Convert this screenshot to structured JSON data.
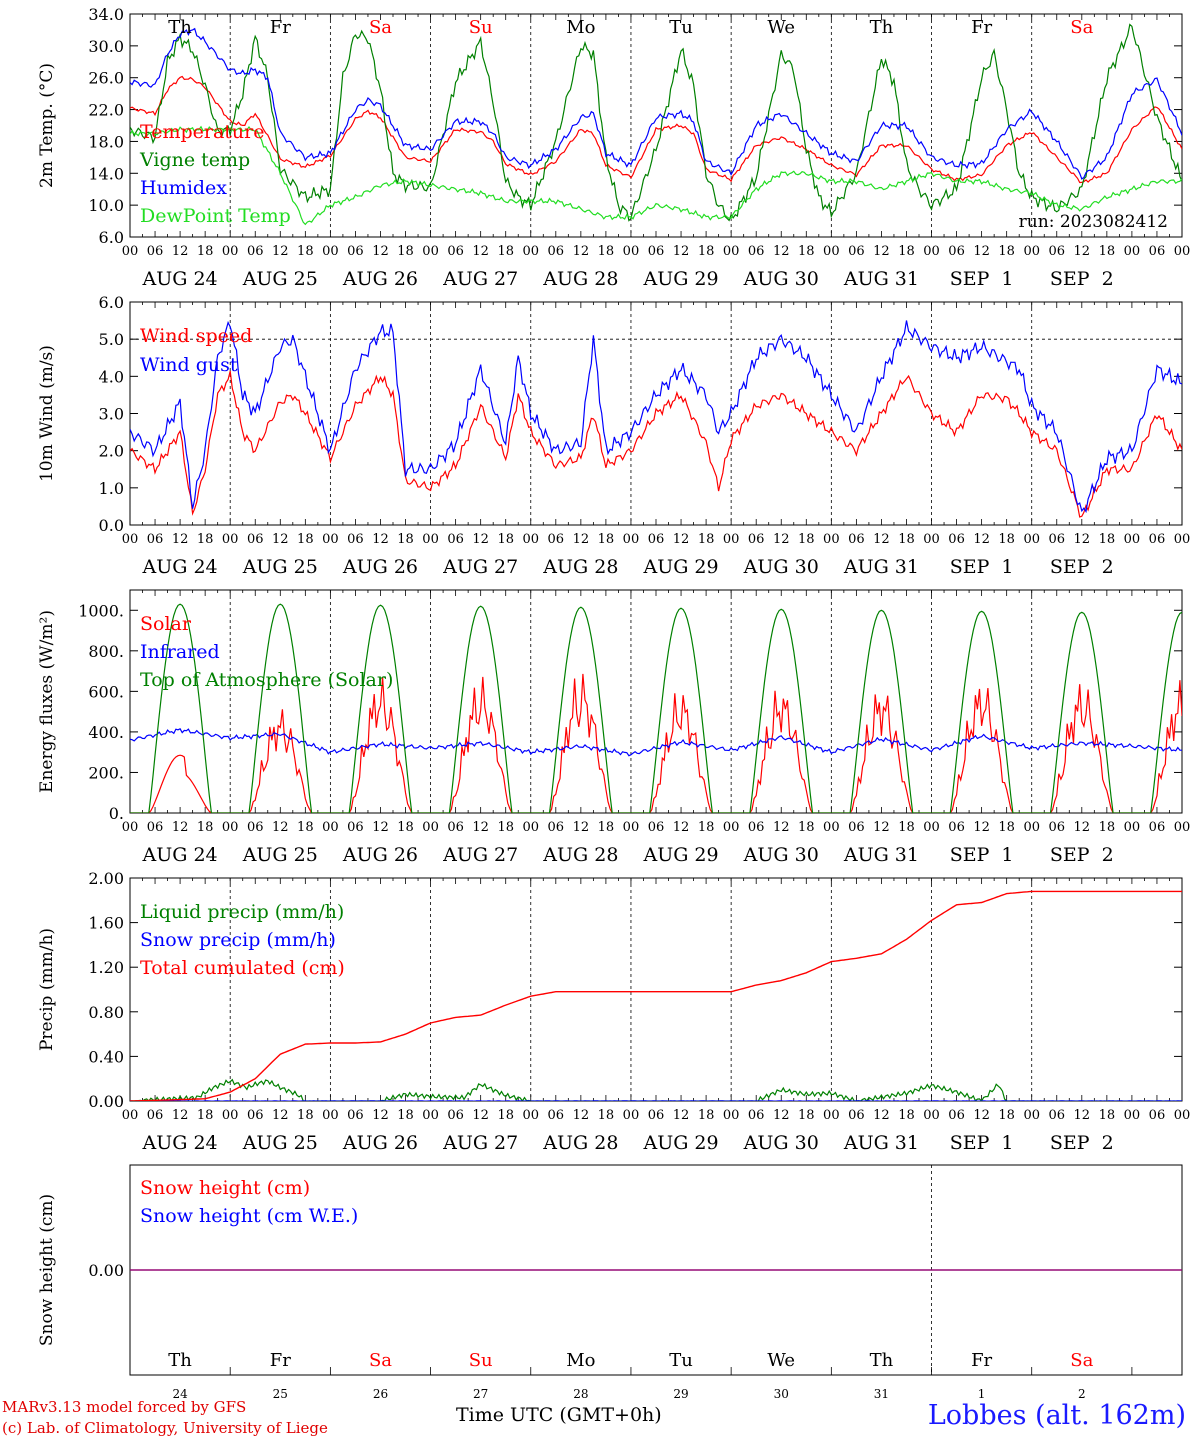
{
  "colors": {
    "red": "#ff0000",
    "green": "#008000",
    "blue": "#0000ff",
    "light_green": "#22dd22",
    "purple": "#800080",
    "weekend": "#ff0000",
    "weekday": "#000000"
  },
  "time_axis": {
    "hour_labels": [
      "00",
      "06",
      "12",
      "18"
    ],
    "final_hour_label": "00",
    "dates": [
      "AUG 24",
      "AUG 25",
      "AUG 26",
      "AUG 27",
      "AUG 28",
      "AUG 29",
      "AUG 30",
      "AUG 31",
      "SEP  1",
      "SEP  2"
    ],
    "day_names": [
      "Th",
      "Fr",
      "Sa",
      "Su",
      "Mo",
      "Tu",
      "We",
      "Th",
      "Fr",
      "Sa"
    ],
    "weekend_index": [
      2,
      3,
      9
    ],
    "day_numbers": [
      "24",
      "25",
      "26",
      "27",
      "28",
      "29",
      "30",
      "31",
      "1",
      "2"
    ]
  },
  "footer": {
    "model_line": "MARv3.13 model forced by GFS",
    "lab_line": "(c) Lab. of Climatology, University of Liege",
    "xlabel": "Time UTC (GMT+0h)",
    "station": "Lobbes (alt. 162m)"
  },
  "chart_data": [
    {
      "type": "line",
      "ylabel": "2m Temp. (°C)",
      "ylim": [
        6.0,
        34.0
      ],
      "ytick_labels": [
        "6.0",
        "10.0",
        "14.0",
        "18.0",
        "22.0",
        "26.0",
        "30.0",
        "34.0"
      ],
      "annotation": "run: 2023082412",
      "x_unit": "hours since Aug 24 00 UTC",
      "series": [
        {
          "name": "Temperature",
          "color": "red",
          "x": [
            0,
            6,
            9,
            12,
            15,
            18,
            24,
            27,
            30,
            36,
            42,
            48,
            54,
            57,
            60,
            66,
            72,
            78,
            84,
            87,
            90,
            96,
            102,
            108,
            111,
            114,
            120,
            126,
            132,
            135,
            138,
            144,
            150,
            156,
            162,
            168,
            174,
            180,
            186,
            192,
            198,
            204,
            210,
            216,
            222,
            228,
            234,
            240,
            246,
            252
          ],
          "y": [
            22.2,
            21.5,
            24.5,
            26,
            25.8,
            24.8,
            20.5,
            20,
            21.5,
            15.8,
            14.8,
            16.2,
            20.8,
            21.8,
            21,
            16,
            15.5,
            19.5,
            19.2,
            18,
            15.2,
            13.8,
            15.5,
            19.5,
            19,
            15,
            13.5,
            19.5,
            20,
            19,
            14.5,
            13.2,
            17.5,
            18.5,
            17,
            15,
            13.8,
            17.5,
            17.5,
            14.5,
            13.2,
            13.8,
            17.5,
            19.2,
            16,
            12.8,
            14,
            19.5,
            22.5,
            17
          ]
        },
        {
          "name": "Vigne temp",
          "color": "green",
          "x": [
            0,
            6,
            9,
            12,
            15,
            18,
            21,
            24,
            27,
            30,
            33,
            36,
            42,
            48,
            51,
            54,
            57,
            60,
            63,
            66,
            72,
            78,
            84,
            87,
            90,
            93,
            96,
            102,
            108,
            111,
            114,
            117,
            120,
            126,
            132,
            135,
            138,
            141,
            144,
            150,
            156,
            159,
            162,
            165,
            168,
            174,
            180,
            183,
            186,
            189,
            192,
            198,
            204,
            207,
            210,
            213,
            216,
            222,
            228,
            234,
            240,
            246,
            252
          ],
          "y": [
            19.5,
            18.5,
            28,
            31,
            29.5,
            25,
            19.2,
            19.5,
            24,
            31,
            26,
            14.5,
            11,
            12,
            26,
            31.5,
            31,
            24.5,
            14,
            12.5,
            12.2,
            25.5,
            30.5,
            23,
            13,
            11,
            10,
            18,
            30,
            29,
            16,
            10,
            8.5,
            17,
            29.5,
            25,
            14,
            10,
            8,
            13.5,
            29,
            27,
            17,
            11,
            9,
            14,
            28.5,
            25.5,
            15,
            12,
            10,
            12,
            26,
            29,
            22,
            14,
            11,
            9.5,
            12,
            26,
            32.5,
            21,
            13
          ]
        },
        {
          "name": "Humidex",
          "color": "blue",
          "x": [
            0,
            6,
            9,
            12,
            15,
            18,
            24,
            27,
            30,
            33,
            36,
            42,
            48,
            54,
            57,
            60,
            66,
            72,
            78,
            84,
            87,
            90,
            96,
            102,
            108,
            111,
            114,
            120,
            126,
            132,
            135,
            138,
            144,
            150,
            156,
            162,
            168,
            174,
            180,
            186,
            192,
            198,
            204,
            210,
            216,
            222,
            228,
            234,
            240,
            246,
            252
          ],
          "y": [
            25.5,
            25,
            29,
            31.5,
            32,
            30.5,
            27,
            26.5,
            27,
            26,
            19,
            16,
            16.5,
            22,
            23.2,
            22.5,
            17.5,
            17,
            20.5,
            20.5,
            19,
            16,
            15,
            17,
            21,
            21.5,
            16.5,
            15,
            21,
            21.5,
            20.5,
            15.5,
            14,
            20,
            21.5,
            19,
            16.5,
            15.5,
            20,
            20,
            16,
            15,
            15.2,
            19.5,
            21.8,
            18,
            13.5,
            16,
            24,
            25.8,
            19
          ]
        },
        {
          "name": "DewPoint Temp",
          "color": "light_green",
          "x": [
            0,
            6,
            12,
            18,
            24,
            30,
            36,
            42,
            48,
            54,
            60,
            66,
            72,
            78,
            84,
            90,
            96,
            102,
            108,
            114,
            120,
            126,
            132,
            138,
            144,
            150,
            156,
            162,
            168,
            174,
            180,
            186,
            192,
            198,
            204,
            210,
            216,
            222,
            228,
            234,
            240,
            246,
            252
          ],
          "y": [
            19,
            19,
            19.5,
            19.5,
            19.5,
            19.5,
            14,
            7.5,
            10,
            11,
            12.5,
            13,
            12.5,
            12,
            11.5,
            10.5,
            10.5,
            10.5,
            9.5,
            8.5,
            8.5,
            10,
            9.5,
            8.5,
            8.5,
            12,
            14,
            14,
            13,
            13,
            12,
            13,
            14,
            13,
            13,
            12,
            11.5,
            10,
            9.5,
            11,
            12,
            13,
            13
          ]
        }
      ]
    },
    {
      "type": "line",
      "ylabel": "10m Wind (m/s)",
      "ylim": [
        0.0,
        6.0
      ],
      "ytick_labels": [
        "0.0",
        "1.0",
        "2.0",
        "3.0",
        "4.0",
        "5.0",
        "6.0"
      ],
      "reference_line": 5.0,
      "series": [
        {
          "name": "Wind speed",
          "color": "red",
          "x": [
            0,
            6,
            12,
            15,
            18,
            21,
            24,
            27,
            30,
            36,
            39,
            42,
            48,
            54,
            60,
            63,
            66,
            72,
            78,
            84,
            90,
            93,
            96,
            102,
            108,
            111,
            114,
            120,
            126,
            132,
            138,
            141,
            144,
            150,
            156,
            162,
            168,
            174,
            180,
            186,
            192,
            198,
            204,
            210,
            213,
            216,
            222,
            228,
            234,
            240,
            246,
            252
          ],
          "y": [
            2,
            1.5,
            2.5,
            0.3,
            1.5,
            3.5,
            4,
            2.5,
            2,
            3.3,
            3.5,
            3,
            1.8,
            3.2,
            4,
            3.5,
            1.2,
            1.0,
            1.6,
            3.2,
            1.8,
            3.5,
            2.5,
            1.6,
            1.8,
            3,
            1.6,
            2.0,
            3.0,
            3.5,
            2.2,
            1,
            2.3,
            3.2,
            3.5,
            3,
            2.5,
            2,
            3,
            4,
            3,
            2.5,
            3.5,
            3.4,
            3,
            2.5,
            2,
            0.2,
            1.5,
            1.5,
            3,
            2
          ]
        },
        {
          "name": "Wind gust",
          "color": "blue",
          "x": [
            0,
            6,
            12,
            15,
            18,
            21,
            24,
            27,
            30,
            36,
            39,
            42,
            48,
            54,
            60,
            63,
            66,
            72,
            78,
            84,
            90,
            93,
            96,
            102,
            108,
            111,
            114,
            120,
            126,
            132,
            138,
            141,
            144,
            150,
            156,
            162,
            168,
            174,
            180,
            186,
            192,
            198,
            204,
            210,
            213,
            216,
            222,
            228,
            234,
            240,
            246,
            252
          ],
          "y": [
            2.5,
            2,
            3.3,
            0.5,
            2,
            4.5,
            5.5,
            3.5,
            3,
            4.8,
            5,
            4,
            2,
            4.2,
            5.2,
            5.2,
            1.5,
            1.5,
            2.2,
            4.2,
            2.2,
            4.5,
            3,
            2,
            2.2,
            5,
            2,
            2.5,
            3.5,
            4.2,
            3.5,
            2.5,
            3,
            4.5,
            5,
            4.5,
            3.5,
            2.5,
            4,
            5.3,
            4.8,
            4.5,
            4.8,
            4.4,
            4.2,
            3.2,
            2.5,
            0.3,
            1.8,
            2,
            4.2,
            3.8
          ]
        }
      ]
    },
    {
      "type": "line",
      "ylabel": "Energy fluxes (W/m²)",
      "ylim": [
        0,
        1100
      ],
      "ytick_labels": [
        "0.",
        "200.",
        "400.",
        "600.",
        "800.",
        "1000."
      ],
      "series": [
        {
          "name": "Solar",
          "color": "red",
          "peaks_x": [
            12,
            36,
            60,
            84,
            108,
            132,
            156,
            180,
            204,
            228
          ],
          "peaks_y": [
            300,
            560,
            720,
            720,
            750,
            660,
            680,
            680,
            710,
            700
          ]
        },
        {
          "name": "Infrared",
          "color": "blue",
          "x": [
            0,
            12,
            24,
            36,
            48,
            60,
            72,
            84,
            96,
            108,
            120,
            132,
            144,
            156,
            168,
            180,
            192,
            204,
            216,
            228,
            240,
            252
          ],
          "y": [
            360,
            410,
            370,
            390,
            300,
            340,
            320,
            345,
            300,
            330,
            290,
            350,
            310,
            375,
            300,
            365,
            310,
            380,
            320,
            345,
            330,
            310
          ]
        },
        {
          "name": "Top of Atmosphere (Solar)",
          "color": "green",
          "peaks_x": [
            12,
            36,
            60,
            84,
            108,
            132,
            156,
            180,
            204,
            228
          ],
          "peaks_y": [
            1030,
            1030,
            1025,
            1020,
            1015,
            1010,
            1005,
            1000,
            995,
            990
          ]
        }
      ]
    },
    {
      "type": "line",
      "ylabel": "Precip (mm/h)",
      "ylim": [
        0.0,
        2.0
      ],
      "ytick_labels": [
        "0.00",
        "0.40",
        "0.80",
        "1.20",
        "1.60",
        "2.00"
      ],
      "series": [
        {
          "name": "Liquid precip (mm/h)",
          "color": "green",
          "x": [
            0,
            10,
            16,
            20,
            24,
            28,
            30,
            33,
            36,
            40,
            42,
            60,
            66,
            72,
            80,
            84,
            90,
            96,
            150,
            156,
            162,
            168,
            174,
            186,
            192,
            198,
            204,
            208,
            210,
            216
          ],
          "y": [
            0,
            0.02,
            0.03,
            0.12,
            0.18,
            0.12,
            0.15,
            0.18,
            0.12,
            0.06,
            0,
            0,
            0.06,
            0.04,
            0.03,
            0.15,
            0.05,
            0,
            0,
            0.1,
            0.06,
            0.07,
            0,
            0.07,
            0.14,
            0.08,
            0,
            0.15,
            0,
            0
          ]
        },
        {
          "name": "Snow precip (mm/h)",
          "color": "blue",
          "x": [
            0,
            252
          ],
          "y": [
            0,
            0
          ]
        },
        {
          "name": "Total cumulated (cm)",
          "color": "red",
          "x": [
            0,
            10,
            18,
            24,
            30,
            36,
            42,
            48,
            54,
            60,
            66,
            72,
            78,
            84,
            90,
            96,
            102,
            114,
            126,
            144,
            150,
            156,
            162,
            168,
            174,
            180,
            186,
            192,
            198,
            204,
            210,
            216,
            222,
            234,
            252
          ],
          "y": [
            0,
            0.01,
            0.02,
            0.08,
            0.2,
            0.42,
            0.51,
            0.52,
            0.52,
            0.53,
            0.6,
            0.7,
            0.75,
            0.77,
            0.86,
            0.94,
            0.98,
            0.98,
            0.98,
            0.98,
            1.04,
            1.08,
            1.15,
            1.25,
            1.28,
            1.32,
            1.45,
            1.62,
            1.76,
            1.78,
            1.86,
            1.88,
            1.88,
            1.88,
            1.88
          ]
        }
      ]
    },
    {
      "type": "line",
      "ylabel": "Snow height (cm)",
      "ytick_labels": [
        "0.00"
      ],
      "series": [
        {
          "name": "Snow height (cm)",
          "color": "red",
          "x": [
            0,
            252
          ],
          "y": [
            0,
            0
          ]
        },
        {
          "name": "Snow height (cm W.E.)",
          "color": "blue",
          "x": [
            0,
            252
          ],
          "y": [
            0,
            0
          ]
        }
      ]
    }
  ]
}
